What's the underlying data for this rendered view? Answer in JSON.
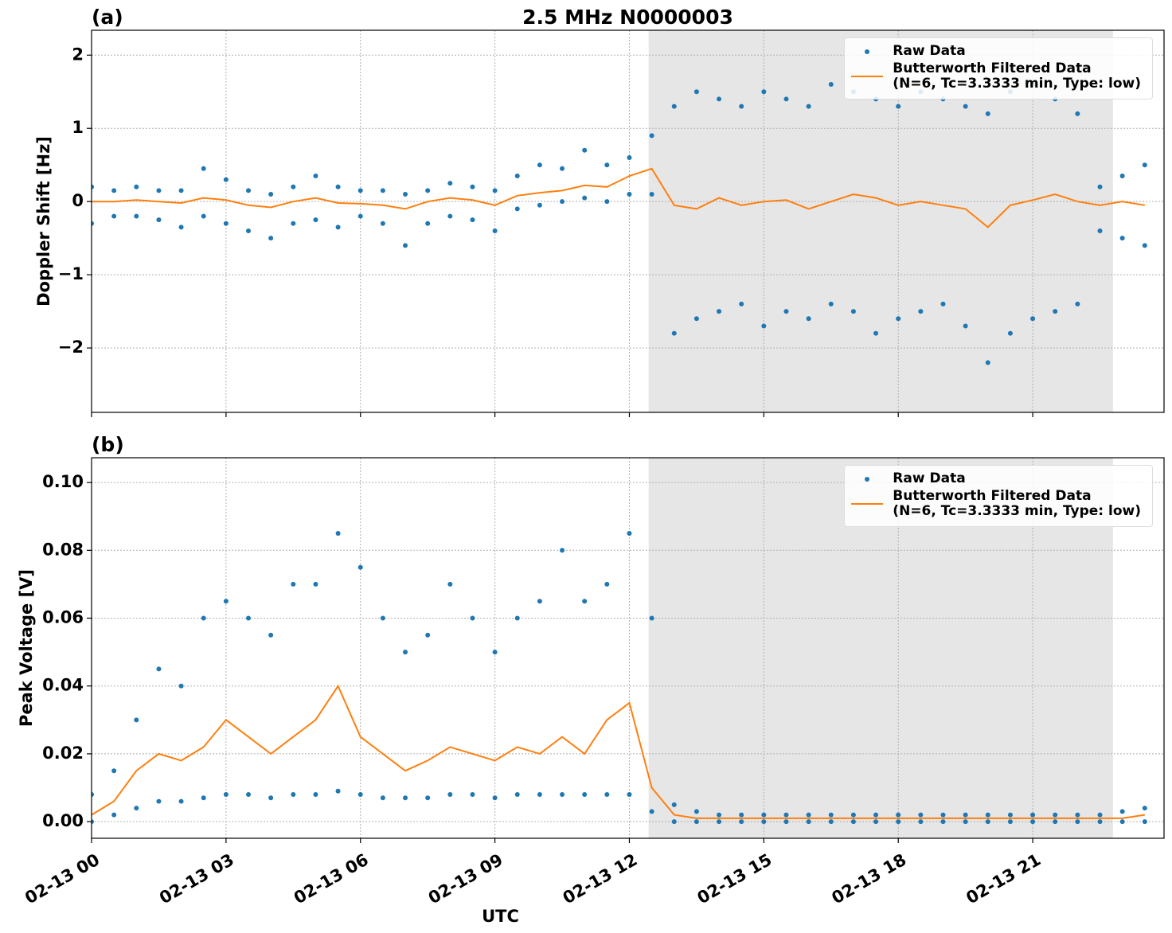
{
  "chart_data": [
    {
      "type": "line",
      "title": "2.5 MHz N0000003",
      "panel_label": "(a)",
      "ylabel": "Doppler Shift [Hz]",
      "xlim": [
        0,
        23.93
      ],
      "ylim": [
        -2.88,
        2.34
      ],
      "yticks": [
        2,
        1,
        0,
        {
          "value": -1,
          "label": "−1"
        },
        {
          "value": -2,
          "label": "−2"
        }
      ],
      "grid": true,
      "legend": "upper right",
      "span": [
        12.43,
        22.79
      ],
      "span_color": "#e6e6e6",
      "series": [
        {
          "name": "Raw Data",
          "kind": "scatter",
          "color": "#1f77b4",
          "x": [
            0,
            0.5,
            1,
            1.5,
            2,
            2.5,
            3,
            3.5,
            4,
            4.5,
            5,
            5.5,
            6,
            6.5,
            7,
            7.5,
            8,
            8.5,
            9,
            9.5,
            10,
            10.5,
            11,
            11.5,
            12,
            12.5,
            13,
            13.5,
            14,
            14.5,
            15,
            15.5,
            16,
            16.5,
            17,
            17.5,
            18,
            18.5,
            19,
            19.5,
            20,
            20.5,
            21,
            21.5,
            22,
            22.5,
            23,
            23.5,
            0,
            0.5,
            1,
            1.5,
            2,
            2.5,
            3,
            3.5,
            4,
            4.5,
            5,
            5.5,
            6,
            6.5,
            7,
            7.5,
            8,
            8.5,
            9,
            9.5,
            10,
            10.5,
            11,
            11.5,
            12,
            12.5,
            13,
            13.5,
            14,
            14.5,
            15,
            15.5,
            16,
            16.5,
            17,
            17.5,
            18,
            18.5,
            19,
            19.5,
            20,
            20.5,
            21,
            21.5,
            22,
            22.5,
            23,
            23.5
          ],
          "values": [
            0.2,
            0.15,
            0.2,
            0.15,
            0.15,
            0.45,
            0.3,
            0.15,
            0.1,
            0.2,
            0.35,
            0.2,
            0.15,
            0.15,
            0.1,
            0.15,
            0.25,
            0.2,
            0.15,
            0.35,
            0.5,
            0.45,
            0.7,
            0.5,
            0.6,
            0.9,
            1.3,
            1.5,
            1.4,
            1.3,
            1.5,
            1.4,
            1.3,
            1.6,
            1.5,
            1.4,
            1.3,
            1.5,
            1.4,
            1.3,
            1.2,
            1.5,
            1.6,
            1.4,
            1.2,
            0.2,
            0.35,
            0.5,
            -0.3,
            -0.2,
            -0.2,
            -0.25,
            -0.35,
            -0.2,
            -0.3,
            -0.4,
            -0.5,
            -0.3,
            -0.25,
            -0.35,
            -0.2,
            -0.3,
            -0.6,
            -0.3,
            -0.2,
            -0.25,
            -0.4,
            -0.1,
            -0.05,
            0,
            0.05,
            0,
            0.1,
            0.1,
            -1.8,
            -1.6,
            -1.5,
            -1.4,
            -1.7,
            -1.5,
            -1.6,
            -1.4,
            -1.5,
            -1.8,
            -1.6,
            -1.5,
            -1.4,
            -1.7,
            -2.2,
            -1.8,
            -1.6,
            -1.5,
            -1.4,
            -0.4,
            -0.5,
            -0.6
          ]
        },
        {
          "name": "Butterworth Filtered Data\n(N=6, Tc=3.3333 min, Type: low)",
          "kind": "line",
          "color": "#ff7f0e",
          "x": [
            0,
            0.5,
            1,
            1.5,
            2,
            2.5,
            3,
            3.5,
            4,
            4.5,
            5,
            5.5,
            6,
            6.5,
            7,
            7.5,
            8,
            8.5,
            9,
            9.5,
            10,
            10.5,
            11,
            11.5,
            12,
            12.5,
            13,
            13.5,
            14,
            14.5,
            15,
            15.5,
            16,
            16.5,
            17,
            17.5,
            18,
            18.5,
            19,
            19.5,
            20,
            20.5,
            21,
            21.5,
            22,
            22.5,
            23,
            23.5
          ],
          "values": [
            0,
            0,
            0.02,
            0,
            -0.02,
            0.05,
            0.02,
            -0.05,
            -0.08,
            0,
            0.05,
            -0.02,
            -0.03,
            -0.05,
            -0.1,
            0,
            0.05,
            0.02,
            -0.05,
            0.08,
            0.12,
            0.15,
            0.22,
            0.2,
            0.35,
            0.45,
            -0.05,
            -0.1,
            0.05,
            -0.05,
            0,
            0.02,
            -0.1,
            0,
            0.1,
            0.05,
            -0.05,
            0,
            -0.05,
            -0.1,
            -0.35,
            -0.05,
            0.02,
            0.1,
            0,
            -0.05,
            0,
            -0.05
          ]
        }
      ]
    },
    {
      "type": "line",
      "panel_label": "(b)",
      "ylabel": "Peak Voltage [V]",
      "xlabel": "UTC",
      "xlim": [
        0,
        23.93
      ],
      "ylim": [
        -0.0049,
        0.1073
      ],
      "xticks": [
        {
          "value": 0,
          "label": "02-13 00"
        },
        {
          "value": 3,
          "label": "02-13 03"
        },
        {
          "value": 6,
          "label": "02-13 06"
        },
        {
          "value": 9,
          "label": "02-13 09"
        },
        {
          "value": 12,
          "label": "02-13 12"
        },
        {
          "value": 15,
          "label": "02-13 15"
        },
        {
          "value": 18,
          "label": "02-13 18"
        },
        {
          "value": 21,
          "label": "02-13 21"
        }
      ],
      "yticks": [
        {
          "value": 0,
          "label": "0.00"
        },
        {
          "value": 0.02,
          "label": "0.02"
        },
        {
          "value": 0.04,
          "label": "0.04"
        },
        {
          "value": 0.06,
          "label": "0.06"
        },
        {
          "value": 0.08,
          "label": "0.08"
        },
        {
          "value": 0.1,
          "label": "0.10"
        }
      ],
      "grid": true,
      "legend": "upper right",
      "span": [
        12.43,
        22.79
      ],
      "span_color": "#e6e6e6",
      "series": [
        {
          "name": "Raw Data",
          "kind": "scatter",
          "color": "#1f77b4",
          "x": [
            0,
            0.5,
            1,
            1.5,
            2,
            2.5,
            3,
            3.5,
            4,
            4.5,
            5,
            5.5,
            6,
            6.5,
            7,
            7.5,
            8,
            8.5,
            9,
            9.5,
            10,
            10.5,
            11,
            11.5,
            12,
            12.5,
            13,
            13.5,
            14,
            14.5,
            15,
            15.5,
            16,
            16.5,
            17,
            17.5,
            18,
            18.5,
            19,
            19.5,
            20,
            20.5,
            21,
            21.5,
            22,
            22.5,
            23,
            23.5,
            0,
            0.5,
            1,
            1.5,
            2,
            2.5,
            3,
            3.5,
            4,
            4.5,
            5,
            5.5,
            6,
            6.5,
            7,
            7.5,
            8,
            8.5,
            9,
            9.5,
            10,
            10.5,
            11,
            11.5,
            12,
            12.5,
            13,
            13.5,
            14,
            14.5,
            15,
            15.5,
            16,
            16.5,
            17,
            17.5,
            18,
            18.5,
            19,
            19.5,
            20,
            20.5,
            21,
            21.5,
            22,
            22.5,
            23,
            23.5
          ],
          "values": [
            0.008,
            0.015,
            0.03,
            0.045,
            0.04,
            0.06,
            0.065,
            0.06,
            0.055,
            0.07,
            0.07,
            0.085,
            0.075,
            0.06,
            0.05,
            0.055,
            0.07,
            0.06,
            0.05,
            0.06,
            0.065,
            0.08,
            0.065,
            0.07,
            0.085,
            0.06,
            0.005,
            0.003,
            0.002,
            0.002,
            0.002,
            0.002,
            0.002,
            0.002,
            0.002,
            0.002,
            0.002,
            0.002,
            0.002,
            0.002,
            0.002,
            0.002,
            0.002,
            0.002,
            0.002,
            0.002,
            0.003,
            0.004,
            0,
            0.002,
            0.004,
            0.006,
            0.006,
            0.007,
            0.008,
            0.008,
            0.007,
            0.008,
            0.008,
            0.009,
            0.008,
            0.007,
            0.007,
            0.007,
            0.008,
            0.008,
            0.007,
            0.008,
            0.008,
            0.008,
            0.008,
            0.008,
            0.008,
            0.003,
            0,
            0,
            0,
            0,
            0,
            0,
            0,
            0,
            0,
            0,
            0,
            0,
            0,
            0,
            0,
            0,
            0,
            0,
            0,
            0,
            0,
            0
          ]
        },
        {
          "name": "Butterworth Filtered Data\n(N=6, Tc=3.3333 min, Type: low)",
          "kind": "line",
          "color": "#ff7f0e",
          "x": [
            0,
            0.5,
            1,
            1.5,
            2,
            2.5,
            3,
            3.5,
            4,
            4.5,
            5,
            5.5,
            6,
            6.5,
            7,
            7.5,
            8,
            8.5,
            9,
            9.5,
            10,
            10.5,
            11,
            11.5,
            12,
            12.5,
            13,
            13.5,
            14,
            14.5,
            15,
            15.5,
            16,
            16.5,
            17,
            17.5,
            18,
            18.5,
            19,
            19.5,
            20,
            20.5,
            21,
            21.5,
            22,
            22.5,
            23,
            23.5
          ],
          "values": [
            0.002,
            0.006,
            0.015,
            0.02,
            0.018,
            0.022,
            0.03,
            0.025,
            0.02,
            0.025,
            0.03,
            0.04,
            0.025,
            0.02,
            0.015,
            0.018,
            0.022,
            0.02,
            0.018,
            0.022,
            0.02,
            0.025,
            0.02,
            0.03,
            0.035,
            0.01,
            0.002,
            0.001,
            0.001,
            0.001,
            0.001,
            0.001,
            0.001,
            0.001,
            0.001,
            0.001,
            0.001,
            0.001,
            0.001,
            0.001,
            0.001,
            0.001,
            0.001,
            0.001,
            0.001,
            0.001,
            0.001,
            0.002
          ]
        }
      ]
    }
  ]
}
